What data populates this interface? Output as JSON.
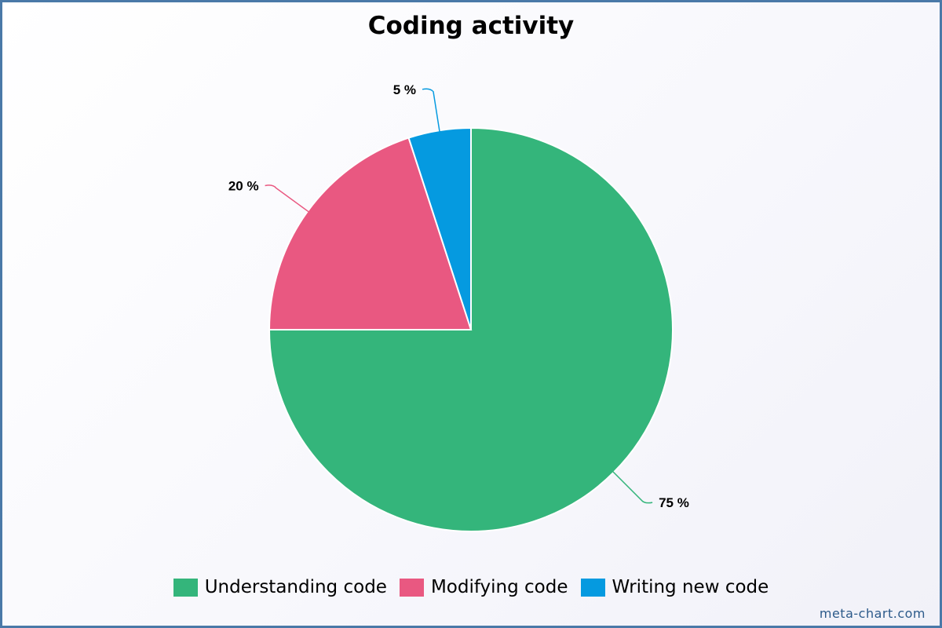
{
  "chart_data": {
    "type": "pie",
    "title": "Coding activity",
    "categories": [
      "Understanding code",
      "Modifying code",
      "Writing new code"
    ],
    "values": [
      75,
      20,
      5
    ],
    "labels": [
      "75 %",
      "20 %",
      "5 %"
    ],
    "colors": [
      "#34b57b",
      "#e95881",
      "#059ae0"
    ],
    "legend_position": "bottom"
  },
  "legend": {
    "items": [
      {
        "label": "Understanding code",
        "color": "#34b57b"
      },
      {
        "label": "Modifying code",
        "color": "#e95881"
      },
      {
        "label": "Writing new code",
        "color": "#059ae0"
      }
    ]
  },
  "watermark": "meta-chart.com"
}
